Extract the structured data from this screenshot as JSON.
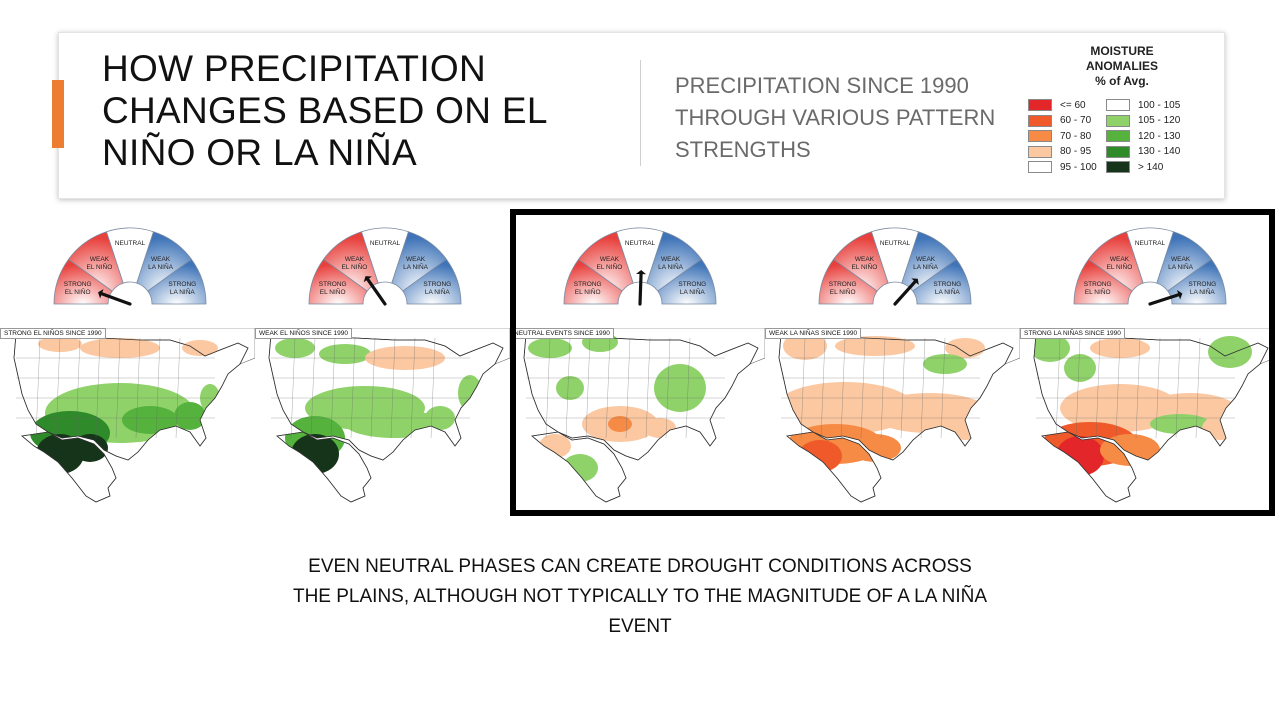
{
  "header": {
    "title": "HOW PRECIPITATION CHANGES BASED ON EL NIÑO OR LA NIÑA",
    "subtitle": "PRECIPITATION SINCE 1990 THROUGH VARIOUS PATTERN STRENGTHS"
  },
  "legend": {
    "title": "MOISTURE ANOMALIES",
    "subtitle": "% of Avg.",
    "items": [
      {
        "label": "<= 60",
        "color": "#e3262a"
      },
      {
        "label": "60 - 70",
        "color": "#f05a2a"
      },
      {
        "label": "70 - 80",
        "color": "#f68b45"
      },
      {
        "label": "80 - 95",
        "color": "#fbc8a1"
      },
      {
        "label": "95 - 100",
        "color": "#ffffff"
      },
      {
        "label": "100 - 105",
        "color": "#ffffff"
      },
      {
        "label": "105 - 120",
        "color": "#8fd26a"
      },
      {
        "label": "120 - 130",
        "color": "#55b23d"
      },
      {
        "label": "130 - 140",
        "color": "#2f8a2a"
      },
      {
        "label": "> 140",
        "color": "#16341a"
      }
    ]
  },
  "gauge_labels": {
    "strong_el_nino": [
      "STRONG",
      "EL NIÑO"
    ],
    "weak_el_nino": [
      "WEAK",
      "EL NIÑO"
    ],
    "neutral": [
      "NEUTRAL"
    ],
    "weak_la_nina": [
      "WEAK",
      "LA NIÑA"
    ],
    "strong_la_nina": [
      "STRONG",
      "LA NIÑA"
    ]
  },
  "panels": [
    {
      "map_label": "STRONG EL NIÑOS SINCE 1990",
      "phase": "strong-el-nino",
      "needle_deg": 160
    },
    {
      "map_label": "WEAK EL NIÑOS SINCE 1990",
      "phase": "weak-el-nino",
      "needle_deg": 125
    },
    {
      "map_label": "NEUTRAL EVENTS SINCE 1990",
      "phase": "neutral",
      "needle_deg": 88
    },
    {
      "map_label": "WEAK LA NIÑAS SINCE 1990",
      "phase": "weak-la-nina",
      "needle_deg": 48
    },
    {
      "map_label": "STRONG LA NIÑAS SINCE 1990",
      "phase": "strong-la-nina",
      "needle_deg": 18
    }
  ],
  "caption": "EVEN NEUTRAL PHASES CAN CREATE DROUGHT CONDITIONS ACROSS THE PLAINS, ALTHOUGH NOT TYPICALLY TO THE MAGNITUDE OF A LA NIÑA EVENT",
  "colors": {
    "accent": "#ED7D31",
    "gauge_red": "#e8403c",
    "gauge_blue": "#3f74b8",
    "land": "#ffffff",
    "water": "#ffffff"
  }
}
